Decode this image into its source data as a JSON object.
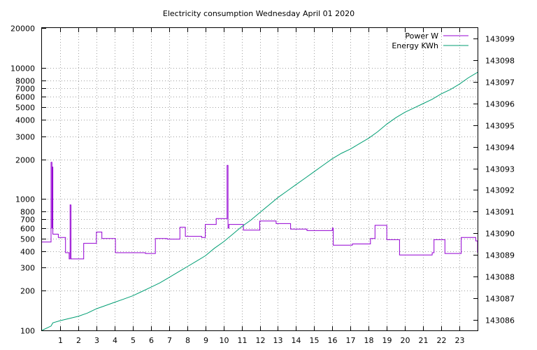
{
  "chart_data": {
    "type": "line",
    "title": "Electricity consumption Wednesday April 01 2020",
    "xlabel": "",
    "ylabel": "",
    "y2label": "",
    "x_ticks": [
      "1",
      "2",
      "3",
      "4",
      "5",
      "6",
      "7",
      "8",
      "9",
      "10",
      "11",
      "12",
      "13",
      "14",
      "15",
      "16",
      "17",
      "18",
      "19",
      "20",
      "21",
      "22",
      "23"
    ],
    "xlim": [
      0,
      24
    ],
    "y_scale": "log",
    "ylim": [
      100,
      20000
    ],
    "y_ticks": [
      100,
      200,
      300,
      400,
      500,
      600,
      700,
      800,
      1000,
      2000,
      3000,
      4000,
      5000,
      6000,
      7000,
      8000,
      10000,
      20000
    ],
    "y2lim": [
      143085.5,
      143099.5
    ],
    "y2_ticks": [
      143086,
      143087,
      143088,
      143089,
      143090,
      143091,
      143092,
      143093,
      143094,
      143095,
      143096,
      143097,
      143098,
      143099
    ],
    "grid": true,
    "legend_position": "top-right",
    "series": [
      {
        "name": "Power W",
        "axis": "left",
        "color": "#9400d3",
        "step": true,
        "points": [
          [
            0,
            470
          ],
          [
            0.5,
            470
          ],
          [
            0.5,
            1900
          ],
          [
            0.55,
            600
          ],
          [
            0.58,
            1750
          ],
          [
            0.6,
            540
          ],
          [
            0.9,
            510
          ],
          [
            1.3,
            390
          ],
          [
            1.5,
            350
          ],
          [
            1.55,
            900
          ],
          [
            1.6,
            350
          ],
          [
            2.3,
            460
          ],
          [
            3.0,
            560
          ],
          [
            3.3,
            500
          ],
          [
            4.05,
            390
          ],
          [
            5.7,
            385
          ],
          [
            6.25,
            500
          ],
          [
            6.9,
            495
          ],
          [
            7.6,
            610
          ],
          [
            7.9,
            520
          ],
          [
            8.8,
            510
          ],
          [
            9.0,
            640
          ],
          [
            9.6,
            710
          ],
          [
            10.15,
            710
          ],
          [
            10.2,
            1800
          ],
          [
            10.25,
            600
          ],
          [
            10.3,
            640
          ],
          [
            11.1,
            580
          ],
          [
            12.0,
            680
          ],
          [
            12.9,
            650
          ],
          [
            13.7,
            590
          ],
          [
            14.6,
            575
          ],
          [
            16.0,
            600
          ],
          [
            16.05,
            445
          ],
          [
            17.1,
            455
          ],
          [
            18.1,
            500
          ],
          [
            18.35,
            630
          ],
          [
            19.0,
            490
          ],
          [
            19.7,
            375
          ],
          [
            21.5,
            390
          ],
          [
            21.6,
            490
          ],
          [
            22.2,
            385
          ],
          [
            23.1,
            510
          ],
          [
            23.9,
            480
          ],
          [
            24.0,
            390
          ]
        ]
      },
      {
        "name": "Energy KWh",
        "axis": "right",
        "color": "#009e73",
        "step": false,
        "points": [
          [
            0,
            143085.5
          ],
          [
            0.5,
            143085.7
          ],
          [
            0.6,
            143085.85
          ],
          [
            1.0,
            143085.95
          ],
          [
            1.5,
            143086.05
          ],
          [
            2.0,
            143086.15
          ],
          [
            2.5,
            143086.3
          ],
          [
            3.0,
            143086.5
          ],
          [
            3.5,
            143086.65
          ],
          [
            4.0,
            143086.8
          ],
          [
            4.5,
            143086.95
          ],
          [
            5.0,
            143087.1
          ],
          [
            5.5,
            143087.3
          ],
          [
            6.0,
            143087.5
          ],
          [
            6.5,
            143087.7
          ],
          [
            7.0,
            143087.95
          ],
          [
            7.5,
            143088.2
          ],
          [
            8.0,
            143088.45
          ],
          [
            8.5,
            143088.7
          ],
          [
            9.0,
            143088.95
          ],
          [
            9.5,
            143089.3
          ],
          [
            10.0,
            143089.6
          ],
          [
            10.5,
            143089.95
          ],
          [
            11.0,
            143090.3
          ],
          [
            11.5,
            143090.6
          ],
          [
            12.0,
            143090.95
          ],
          [
            12.5,
            143091.3
          ],
          [
            13.0,
            143091.65
          ],
          [
            13.5,
            143091.95
          ],
          [
            14.0,
            143092.25
          ],
          [
            14.5,
            143092.55
          ],
          [
            15.0,
            143092.85
          ],
          [
            15.5,
            143093.15
          ],
          [
            16.0,
            143093.45
          ],
          [
            16.5,
            143093.7
          ],
          [
            17.0,
            143093.9
          ],
          [
            17.5,
            143094.15
          ],
          [
            18.0,
            143094.4
          ],
          [
            18.5,
            143094.7
          ],
          [
            19.0,
            143095.05
          ],
          [
            19.5,
            143095.35
          ],
          [
            20.0,
            143095.6
          ],
          [
            20.5,
            143095.8
          ],
          [
            21.0,
            143096.0
          ],
          [
            21.5,
            143096.2
          ],
          [
            22.0,
            143096.45
          ],
          [
            22.5,
            143096.65
          ],
          [
            23.0,
            143096.9
          ],
          [
            23.5,
            143097.2
          ],
          [
            24.0,
            143097.45
          ]
        ]
      }
    ]
  }
}
